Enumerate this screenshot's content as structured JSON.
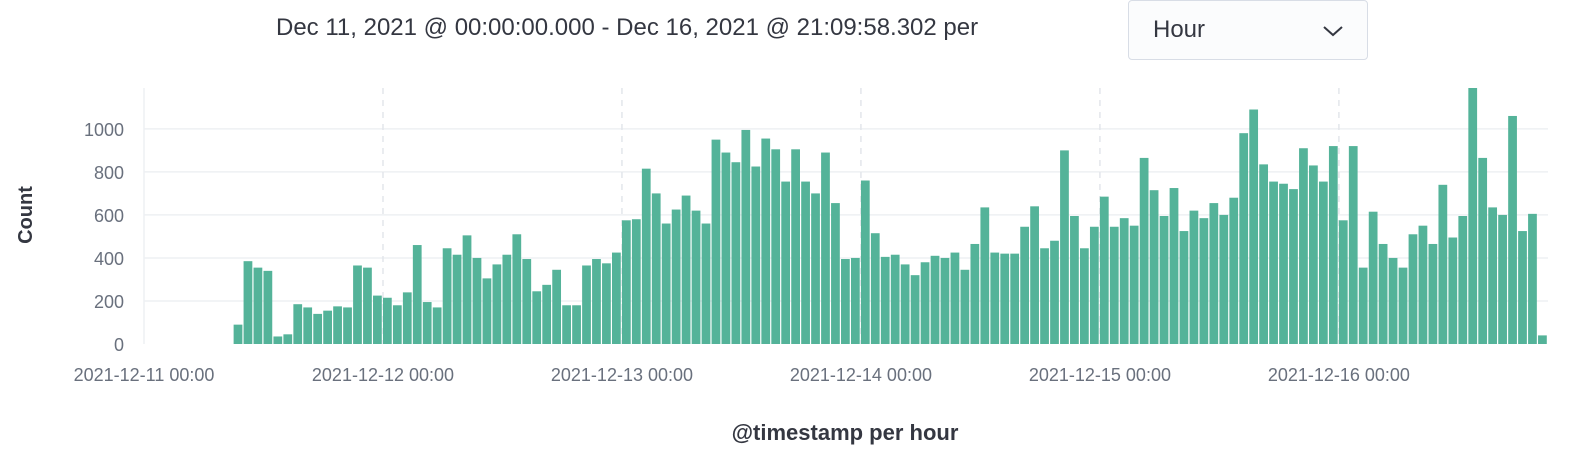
{
  "header": {
    "range_text": "Dec 11, 2021 @ 00:00:00.000 - Dec 16, 2021 @ 21:09:58.302 per",
    "interval_value": "Hour",
    "interval_icon": "chevron-down-icon"
  },
  "chart_data": {
    "type": "bar",
    "xlabel": "@timestamp per hour",
    "ylabel": "Count",
    "ylim": [
      0,
      1190
    ],
    "yticks": [
      0,
      200,
      400,
      600,
      800,
      1000
    ],
    "x_start": "2021-12-11 00:00",
    "x_end": "2021-12-16 21:09:58.302",
    "xtick_labels": [
      "2021-12-11 00:00",
      "2021-12-12 00:00",
      "2021-12-13 00:00",
      "2021-12-14 00:00",
      "2021-12-15 00:00",
      "2021-12-16 00:00"
    ],
    "bar_color": "#54b399",
    "partial_bucket_color": "#e0e2e6",
    "grid": true,
    "first_bar_hour": "2021-12-11 09:00",
    "values": [
      90,
      385,
      355,
      340,
      35,
      45,
      185,
      170,
      140,
      155,
      175,
      170,
      365,
      355,
      225,
      215,
      180,
      240,
      460,
      195,
      170,
      445,
      415,
      505,
      400,
      305,
      370,
      415,
      510,
      395,
      245,
      275,
      345,
      180,
      180,
      365,
      395,
      375,
      425,
      575,
      580,
      815,
      700,
      560,
      625,
      690,
      620,
      560,
      950,
      890,
      845,
      995,
      825,
      955,
      905,
      755,
      905,
      755,
      700,
      890,
      655,
      395,
      400,
      760,
      515,
      405,
      415,
      370,
      320,
      380,
      410,
      400,
      425,
      345,
      465,
      635,
      425,
      420,
      420,
      545,
      640,
      445,
      480,
      900,
      595,
      445,
      545,
      685,
      545,
      585,
      550,
      865,
      715,
      595,
      725,
      525,
      620,
      585,
      655,
      600,
      680,
      980,
      1090,
      835,
      755,
      745,
      720,
      910,
      830,
      755,
      920,
      575,
      920,
      355,
      615,
      465,
      400,
      355,
      510,
      550,
      465,
      740,
      495,
      595,
      1190,
      865,
      635,
      600,
      1060,
      525,
      605,
      40
    ]
  }
}
